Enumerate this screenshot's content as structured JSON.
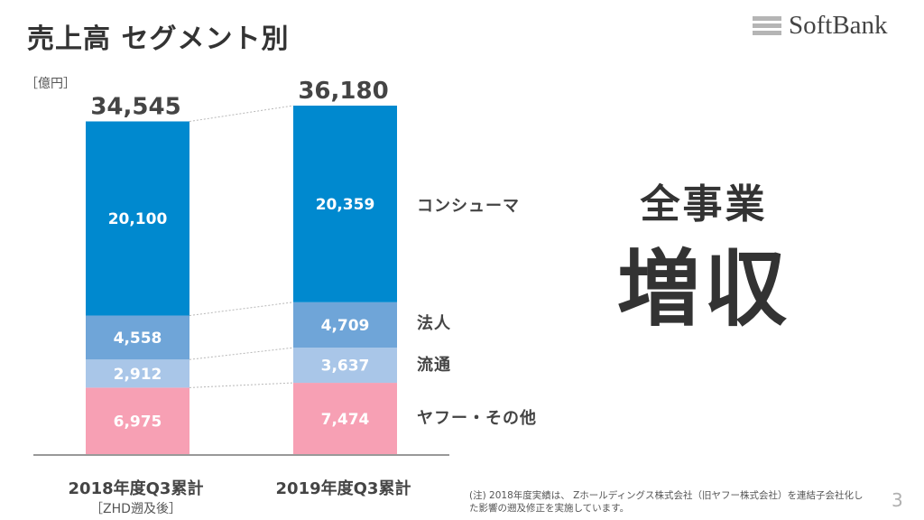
{
  "title": "売上高 セグメント別",
  "logo": {
    "text": "SoftBank"
  },
  "headline": {
    "line1": "全事業",
    "line2": "増収"
  },
  "footnote": "(注) 2018年度実績は、 Zホールディングス株式会社（旧ヤフー株式会社）を連結子会社化した影響の遡及修正を実施しています。",
  "page_number": "3",
  "colors": {
    "consumer": "#0089cf",
    "corporate": "#6fa5d8",
    "distribution": "#a9c6e8",
    "yahoo": "#f7a0b4",
    "axis": "#999999",
    "connector": "#b8b8b8",
    "text": "#333333",
    "label": "#ffffff"
  },
  "chart_data": {
    "type": "bar",
    "stacked": true,
    "unit_label": "［億円］",
    "categories": [
      "2018年度Q3累計",
      "2019年度Q3累計"
    ],
    "category_notes": [
      "［ZHD遡及後］",
      ""
    ],
    "totals": [
      "34,545",
      "36,180"
    ],
    "series": [
      {
        "name": "ヤフー・その他",
        "key": "yahoo",
        "values": [
          6975,
          7474
        ],
        "labels": [
          "6,975",
          "7,474"
        ]
      },
      {
        "name": "流通",
        "key": "distribution",
        "values": [
          2912,
          3637
        ],
        "labels": [
          "2,912",
          "3,637"
        ]
      },
      {
        "name": "法人",
        "key": "corporate",
        "values": [
          4558,
          4709
        ],
        "labels": [
          "4,558",
          "4,709"
        ]
      },
      {
        "name": "コンシューマ",
        "key": "consumer",
        "values": [
          20100,
          20359
        ],
        "labels": [
          "20,100",
          "20,359"
        ]
      }
    ],
    "ylim": [
      0,
      36180
    ]
  }
}
